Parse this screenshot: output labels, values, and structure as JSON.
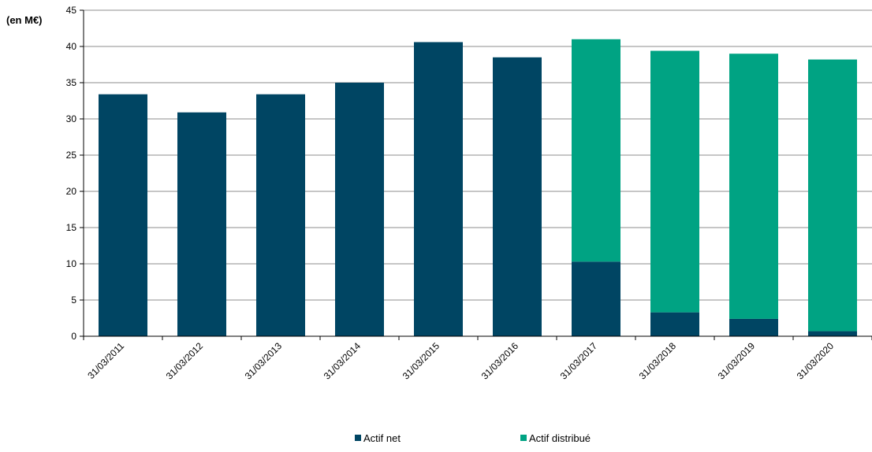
{
  "chart_data": {
    "type": "bar",
    "stacked": true,
    "unit_label": "(en M€)",
    "categories": [
      "31/03/2011",
      "31/03/2012",
      "31/03/2013",
      "31/03/2014",
      "31/03/2015",
      "31/03/2016",
      "31/03/2017",
      "31/03/2018",
      "31/03/2019",
      "31/03/2020"
    ],
    "series": [
      {
        "name": "Actif net",
        "color": "#004563",
        "values": [
          33.4,
          30.9,
          33.4,
          35.0,
          40.6,
          38.5,
          10.3,
          3.3,
          2.4,
          0.7
        ]
      },
      {
        "name": "Actif distribué",
        "color": "#00A383",
        "values": [
          0,
          0,
          0,
          0,
          0,
          0,
          30.7,
          36.1,
          36.6,
          37.5
        ]
      }
    ],
    "ylim": [
      0,
      45
    ],
    "yticks": [
      0,
      5,
      10,
      15,
      20,
      25,
      30,
      35,
      40,
      45
    ],
    "grid": true,
    "legend_position": "bottom"
  }
}
